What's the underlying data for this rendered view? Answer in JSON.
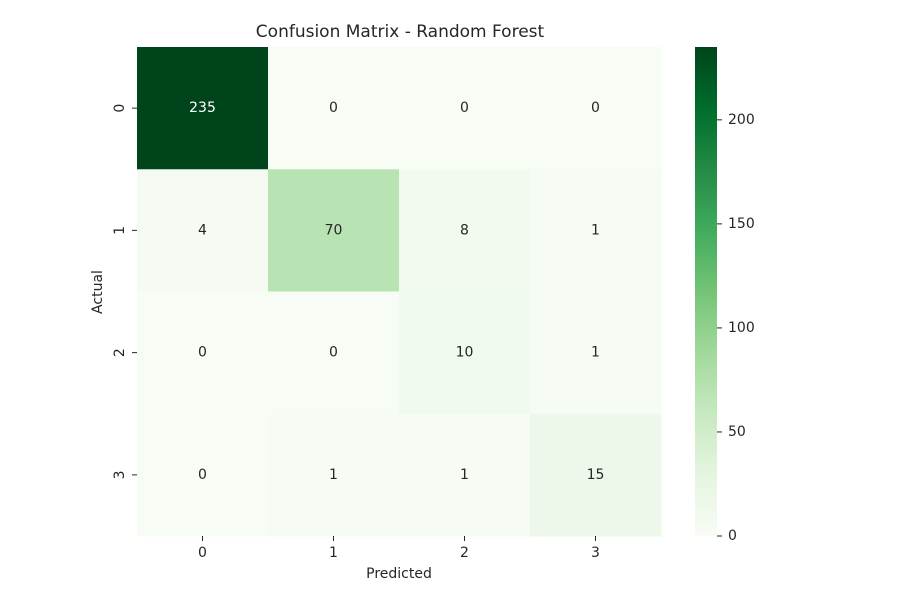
{
  "chart_data": {
    "type": "heatmap",
    "title": "Confusion Matrix - Random Forest",
    "xlabel": "Predicted",
    "ylabel": "Actual",
    "x_categories": [
      "0",
      "1",
      "2",
      "3"
    ],
    "y_categories": [
      "0",
      "1",
      "2",
      "3"
    ],
    "values": [
      [
        235,
        0,
        0,
        0
      ],
      [
        4,
        70,
        8,
        1
      ],
      [
        0,
        0,
        10,
        1
      ],
      [
        0,
        1,
        1,
        15
      ]
    ],
    "colormap": [
      "#f7fcf5",
      "#e5f5e0",
      "#c7e9c0",
      "#a1d99b",
      "#74c476",
      "#41ab5d",
      "#238b45",
      "#006d2c",
      "#00441b"
    ],
    "clim": [
      0,
      235
    ],
    "cticks": [
      0,
      50,
      100,
      150,
      200
    ]
  }
}
